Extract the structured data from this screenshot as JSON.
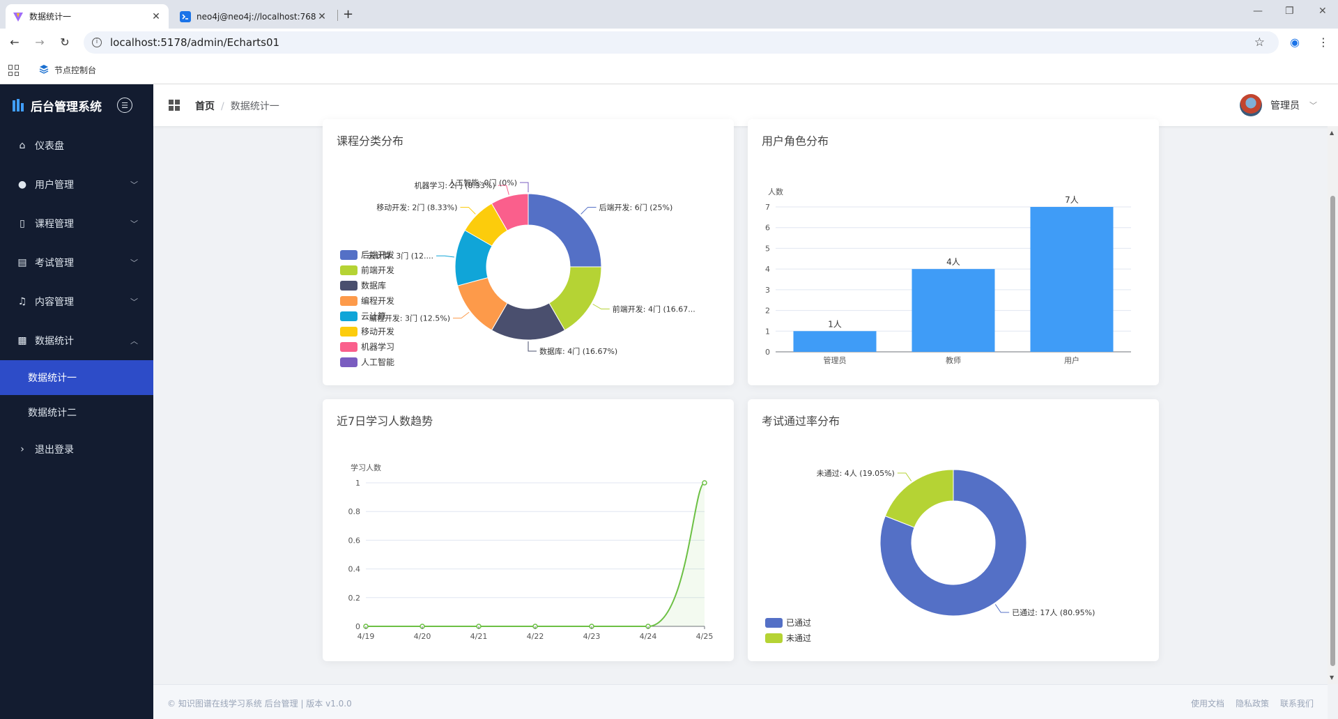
{
  "browser": {
    "tabs": [
      {
        "title": "数据统计一",
        "icon": "vite-icon",
        "active": true
      },
      {
        "title": "neo4j@neo4j://localhost:768",
        "icon": "terminal-icon",
        "active": false
      }
    ],
    "url": "localhost:5178/admin/Echarts01",
    "bookmark": "节点控制台"
  },
  "app": {
    "brand": "后台管理系统",
    "menu": [
      {
        "label": "仪表盘",
        "icon": "home-icon",
        "arrow": ""
      },
      {
        "label": "用户管理",
        "icon": "user-icon",
        "arrow": "﹀"
      },
      {
        "label": "课程管理",
        "icon": "book-icon",
        "arrow": "﹀"
      },
      {
        "label": "考试管理",
        "icon": "document-icon",
        "arrow": "﹀"
      },
      {
        "label": "内容管理",
        "icon": "bell-icon",
        "arrow": "﹀"
      },
      {
        "label": "数据统计",
        "icon": "chart-icon",
        "arrow": "︿"
      }
    ],
    "submenu": [
      {
        "label": "数据统计一",
        "active": true
      },
      {
        "label": "数据统计二",
        "active": false
      }
    ],
    "logout": "退出登录",
    "breadcrumb": {
      "home": "首页",
      "separator": "/",
      "current": "数据统计一"
    },
    "user": "管理员"
  },
  "footer": {
    "copyright": "© 知识图谱在线学习系统 后台管理 | 版本 v1.0.0",
    "links": [
      "使用文档",
      "隐私政策",
      "联系我们"
    ]
  },
  "chart_data": [
    {
      "type": "pie",
      "title": "课程分类分布",
      "legend_position": "left",
      "series": [
        {
          "name": "后端开发",
          "value": 6,
          "label": "后端开发: 6门 (25%)",
          "color": "#5470c6"
        },
        {
          "name": "前端开发",
          "value": 4,
          "label": "前端开发: 4门 (16.67...",
          "color": "#b5d334"
        },
        {
          "name": "数据库",
          "value": 4,
          "label": "数据库: 4门 (16.67%)",
          "color": "#4a4f6e"
        },
        {
          "name": "编程开发",
          "value": 3,
          "label": "编程开发: 3门 (12.5%)",
          "color": "#fd9a4a"
        },
        {
          "name": "云计算",
          "value": 3,
          "label": "云计算: 3门 (12....",
          "color": "#10a5d8"
        },
        {
          "name": "移动开发",
          "value": 2,
          "label": "移动开发: 2门 (8.33%)",
          "color": "#fccc0c"
        },
        {
          "name": "机器学习",
          "value": 2,
          "label": "机器学习: 2门 (8.33%)",
          "color": "#fa5f8c"
        },
        {
          "name": "人工智能",
          "value": 0,
          "label": "人工智能: 0门 (0%)",
          "color": "#7a5cc0"
        }
      ]
    },
    {
      "type": "bar",
      "title": "用户角色分布",
      "ylabel": "人数",
      "categories": [
        "管理员",
        "教师",
        "用户"
      ],
      "values": [
        1,
        4,
        7
      ],
      "data_labels": [
        "1人",
        "4人",
        "7人"
      ],
      "ylim": [
        0,
        7
      ],
      "yticks": [
        "0",
        "1",
        "2",
        "3",
        "4",
        "5",
        "6",
        "7"
      ],
      "color": "#3f9cf7"
    },
    {
      "type": "area",
      "title": "近7日学习人数趋势",
      "ylabel": "学习人数",
      "x": [
        "4/19",
        "4/20",
        "4/21",
        "4/22",
        "4/23",
        "4/24",
        "4/25"
      ],
      "values": [
        0,
        0,
        0,
        0,
        0,
        0,
        1
      ],
      "ylim": [
        0,
        1
      ],
      "yticks": [
        "0",
        "0.2",
        "0.4",
        "0.6",
        "0.8",
        "1"
      ],
      "color": "#6cc044"
    },
    {
      "type": "pie",
      "title": "考试通过率分布",
      "legend_position": "bottom-left",
      "series": [
        {
          "name": "已通过",
          "value": 17,
          "label": "已通过: 17人 (80.95%)",
          "color": "#5470c6"
        },
        {
          "name": "未通过",
          "value": 4,
          "label": "未通过: 4人 (19.05%)",
          "color": "#b5d334"
        }
      ]
    }
  ]
}
